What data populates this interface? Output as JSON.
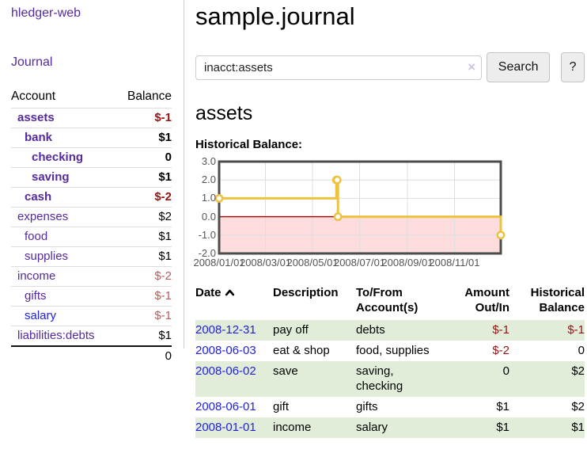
{
  "sidebar": {
    "brand": "hledger-web",
    "nav": {
      "journal": "Journal"
    },
    "accounts_table": {
      "headers": {
        "account": "Account",
        "balance": "Balance"
      },
      "accounts": [
        {
          "name": "assets",
          "depth": 1,
          "bold": true,
          "balance": "$-1",
          "negative": true,
          "blue": false
        },
        {
          "name": "bank",
          "depth": 2,
          "bold": true,
          "balance": "$1",
          "negative": false,
          "blue": false
        },
        {
          "name": "checking",
          "depth": 3,
          "bold": true,
          "balance": "0",
          "negative": false,
          "blue": false
        },
        {
          "name": "saving",
          "depth": 3,
          "bold": true,
          "balance": "$1",
          "negative": false,
          "blue": false
        },
        {
          "name": "cash",
          "depth": 2,
          "bold": true,
          "balance": "$-2",
          "negative": true,
          "blue": false
        },
        {
          "name": "expenses",
          "depth": 1,
          "bold": false,
          "balance": "$2",
          "negative": false,
          "blue": false
        },
        {
          "name": "food",
          "depth": 2,
          "bold": false,
          "balance": "$1",
          "negative": false,
          "blue": false
        },
        {
          "name": "supplies",
          "depth": 2,
          "bold": false,
          "balance": "$1",
          "negative": false,
          "blue": false
        },
        {
          "name": "income",
          "depth": 1,
          "bold": false,
          "balance": "$-2",
          "negative": true,
          "blue": false
        },
        {
          "name": "gifts",
          "depth": 2,
          "bold": false,
          "balance": "$-1",
          "negative": true,
          "blue": false
        },
        {
          "name": "salary",
          "depth": 2,
          "bold": false,
          "balance": "$-1",
          "negative": true,
          "blue": true
        },
        {
          "name": "liabilities:debts",
          "depth": 1,
          "bold": false,
          "balance": "$1",
          "negative": false,
          "blue": false
        }
      ],
      "total": "0"
    }
  },
  "header": {
    "title": "sample.journal"
  },
  "search": {
    "value": "inacct:assets",
    "placeholder": "",
    "clear_icon": "×",
    "search_label": "Search",
    "help_label": "?"
  },
  "account_page": {
    "title": "assets",
    "chart_label": "Historical Balance:"
  },
  "chart_data": {
    "type": "line",
    "title": "Historical Balance",
    "step": true,
    "series": [
      {
        "name": "$",
        "color": "#edc240",
        "dates": [
          "2008-01-01",
          "2008-06-01",
          "2008-06-02",
          "2008-06-03",
          "2008-12-31"
        ],
        "x_days": [
          0,
          152,
          153,
          154,
          365
        ],
        "values": [
          1,
          2,
          2,
          0,
          -1
        ]
      }
    ],
    "xlim_days": [
      0,
      365
    ],
    "ylim": [
      -2,
      3
    ],
    "y_ticks": [
      -2,
      -1,
      0,
      1,
      2,
      3
    ],
    "y_tick_labels": [
      "-2.0",
      "-1.0",
      "0.0",
      "1.0",
      "2.0",
      "3.0"
    ],
    "x_ticks": [
      {
        "day": 0,
        "label": "2008/01/01"
      },
      {
        "day": 60,
        "label": "2008/03/01"
      },
      {
        "day": 121,
        "label": "2008/05/01"
      },
      {
        "day": 182,
        "label": "2008/07/01"
      },
      {
        "day": 244,
        "label": "2008/09/01"
      },
      {
        "day": 305,
        "label": "2008/11/01"
      }
    ],
    "legend": {
      "position": "top-right",
      "entries": [
        {
          "label": "$",
          "color": "#edc240"
        }
      ]
    },
    "grid": true,
    "negative_region_fill": "#fcdcdc",
    "zero_line_color": "#a40000",
    "grid_color": "#dedede",
    "border_color": "#4c4c4c"
  },
  "register": {
    "headers": {
      "date": "Date",
      "description": "Description",
      "account": "To/From Account(s)",
      "amount": "Amount Out/In",
      "balance": "Historical Balance"
    },
    "sort": {
      "column": "date",
      "direction": "ascending"
    },
    "rows": [
      {
        "date": "2008-12-31",
        "description": "pay off",
        "accounts": "debts",
        "amount": "$-1",
        "balance": "$-1"
      },
      {
        "date": "2008-06-03",
        "description": "eat & shop",
        "accounts": "food, supplies",
        "amount": "$-2",
        "balance": "0"
      },
      {
        "date": "2008-06-02",
        "description": "save",
        "accounts": "saving, checking",
        "amount": "0",
        "balance": "$2"
      },
      {
        "date": "2008-06-01",
        "description": "gift",
        "accounts": "gifts",
        "amount": "$1",
        "balance": "$2"
      },
      {
        "date": "2008-01-01",
        "description": "income",
        "accounts": "salary",
        "amount": "$1",
        "balance": "$1"
      }
    ]
  }
}
